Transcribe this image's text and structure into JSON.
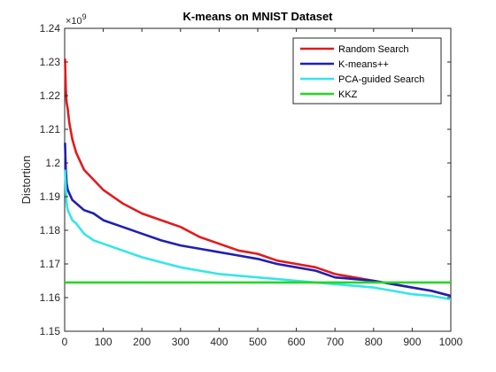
{
  "chart_data": {
    "type": "line",
    "title": "K-means on MNIST Dataset",
    "xlabel": "",
    "ylabel": "Distortion",
    "xlim": [
      0,
      1000
    ],
    "ylim": [
      1.15,
      1.24
    ],
    "y_multiplier_label": "×10",
    "y_multiplier_exponent": "9",
    "x_ticks": [
      0,
      100,
      200,
      300,
      400,
      500,
      600,
      700,
      800,
      900,
      1000
    ],
    "x_tick_labels": [
      "0",
      "100",
      "200",
      "300",
      "400",
      "500",
      "600",
      "700",
      "800",
      "900",
      "1000"
    ],
    "y_ticks": [
      1.15,
      1.16,
      1.17,
      1.18,
      1.19,
      1.2,
      1.21,
      1.22,
      1.23,
      1.24
    ],
    "y_tick_labels": [
      "1.15",
      "1.16",
      "1.17",
      "1.18",
      "1.19",
      "1.2",
      "1.21",
      "1.22",
      "1.23",
      "1.24"
    ],
    "grid": false,
    "legend_position": "top-right",
    "series": [
      {
        "name": "Random Search",
        "color": "#e31a1c",
        "x": [
          1,
          3,
          5,
          8,
          12,
          20,
          30,
          50,
          75,
          100,
          150,
          200,
          250,
          300,
          350,
          400,
          450,
          500,
          550,
          600,
          650,
          700,
          750,
          800,
          850,
          900,
          950,
          1000
        ],
        "y": [
          1.231,
          1.222,
          1.218,
          1.216,
          1.212,
          1.207,
          1.203,
          1.198,
          1.195,
          1.192,
          1.188,
          1.185,
          1.183,
          1.181,
          1.178,
          1.176,
          1.174,
          1.173,
          1.171,
          1.17,
          1.169,
          1.167,
          1.166,
          1.165,
          1.164,
          1.163,
          1.162,
          1.1605
        ]
      },
      {
        "name": "K-means++",
        "color": "#1f1fb4",
        "x": [
          1,
          3,
          5,
          8,
          12,
          20,
          30,
          50,
          75,
          100,
          150,
          200,
          250,
          300,
          350,
          400,
          450,
          500,
          550,
          600,
          650,
          700,
          750,
          800,
          850,
          900,
          950,
          1000
        ],
        "y": [
          1.206,
          1.198,
          1.194,
          1.192,
          1.191,
          1.189,
          1.188,
          1.186,
          1.185,
          1.183,
          1.181,
          1.179,
          1.177,
          1.1755,
          1.1745,
          1.1735,
          1.1725,
          1.1715,
          1.17,
          1.169,
          1.168,
          1.166,
          1.1655,
          1.165,
          1.164,
          1.163,
          1.162,
          1.1605
        ]
      },
      {
        "name": "PCA-guided Search",
        "color": "#33e6ea",
        "x": [
          1,
          3,
          5,
          8,
          12,
          20,
          30,
          50,
          75,
          100,
          150,
          200,
          250,
          300,
          350,
          400,
          450,
          500,
          550,
          600,
          650,
          700,
          750,
          800,
          850,
          900,
          950,
          1000
        ],
        "y": [
          1.198,
          1.192,
          1.188,
          1.186,
          1.185,
          1.183,
          1.182,
          1.179,
          1.177,
          1.176,
          1.174,
          1.172,
          1.1705,
          1.169,
          1.168,
          1.167,
          1.1665,
          1.166,
          1.1655,
          1.165,
          1.1645,
          1.164,
          1.1635,
          1.163,
          1.162,
          1.161,
          1.1605,
          1.1595
        ]
      },
      {
        "name": "KKZ",
        "color": "#22d822",
        "x": [
          0,
          1000
        ],
        "y": [
          1.1645,
          1.1645
        ]
      }
    ]
  }
}
